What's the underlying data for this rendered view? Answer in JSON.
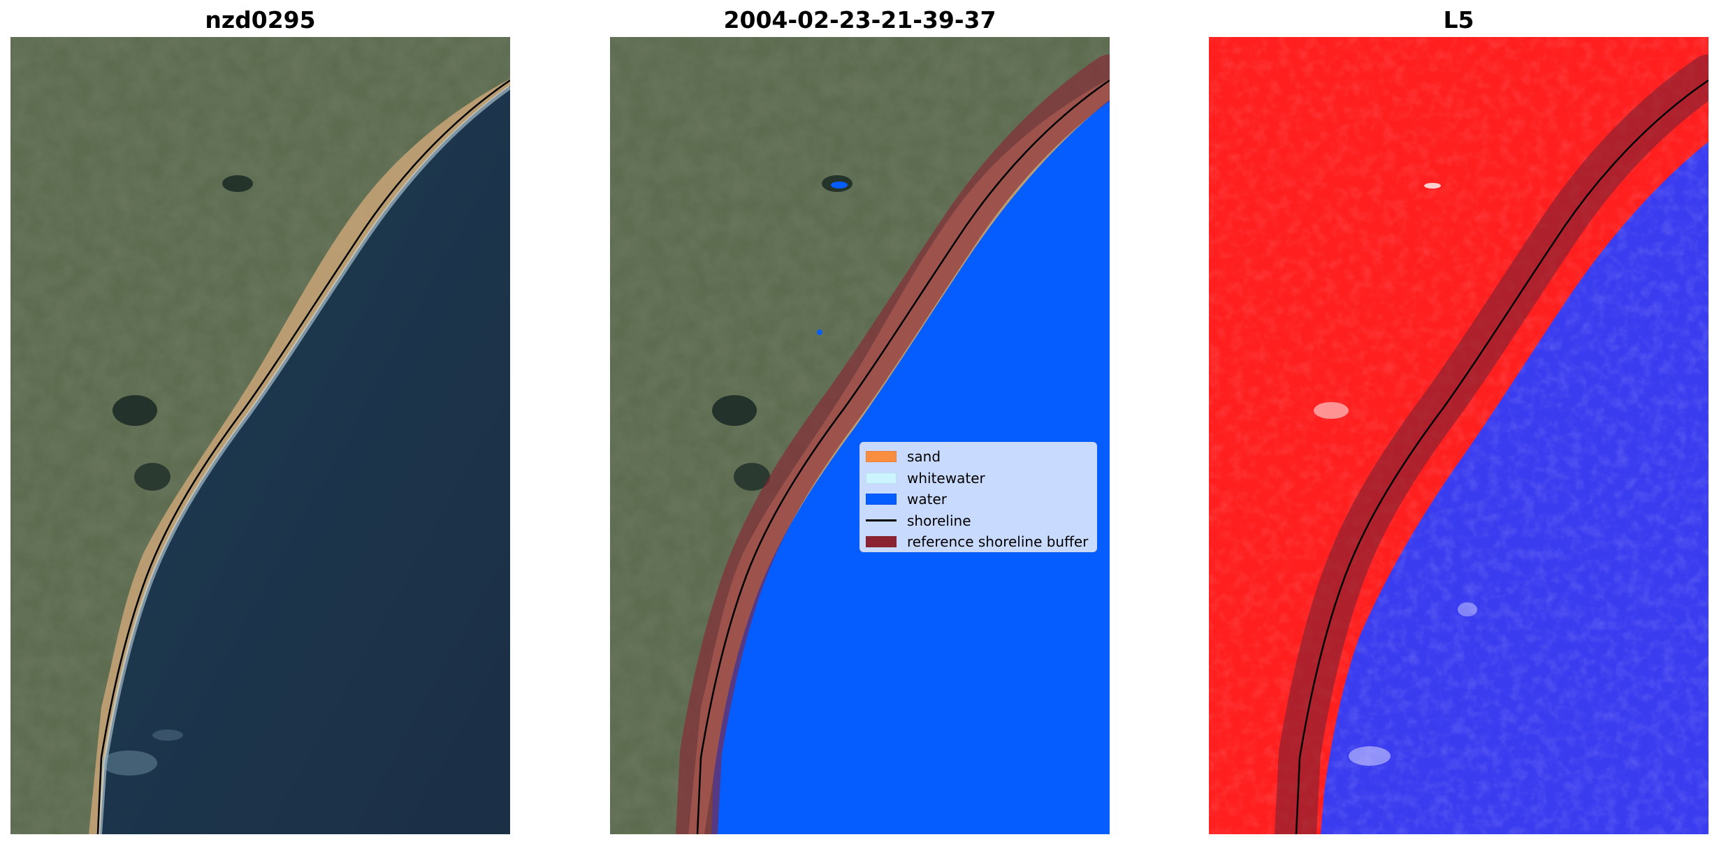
{
  "panels": [
    {
      "title": "nzd0295"
    },
    {
      "title": "2004-02-23-21-39-37"
    },
    {
      "title": "L5"
    }
  ],
  "legend": {
    "items": [
      {
        "label": "sand",
        "color": "#f98d40"
      },
      {
        "label": "whitewater",
        "color": "#ccf4ff"
      },
      {
        "label": "water",
        "color": "#055cff"
      },
      {
        "label": "shoreline",
        "color": "#000000"
      },
      {
        "label": "reference shoreline buffer",
        "color": "#8b2232"
      }
    ]
  },
  "colors": {
    "land": "#5c6b4e",
    "ocean_dark": "#1f3a4f",
    "water_class": "#055cff",
    "buffer": "#8b2232",
    "index_land": "#ff1f1f",
    "index_water": "#3a3cf0"
  }
}
